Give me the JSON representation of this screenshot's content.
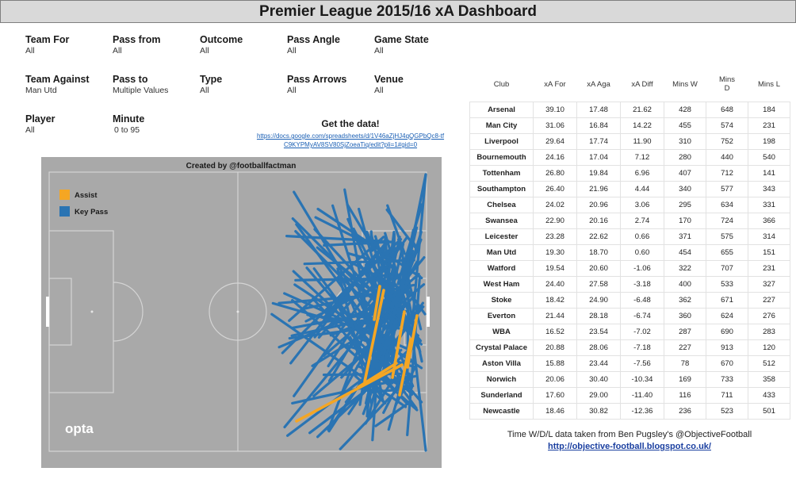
{
  "title": "Premier League 2015/16 xA Dashboard",
  "filters": [
    {
      "label": "Team For",
      "value": "All"
    },
    {
      "label": "Pass from",
      "value": "All"
    },
    {
      "label": "Outcome",
      "value": "All"
    },
    {
      "label": "Pass Angle",
      "value": "All"
    },
    {
      "label": "Game State",
      "value": "All"
    },
    {
      "label": "Team Against",
      "value": "Man Utd"
    },
    {
      "label": "Pass to",
      "value": "Multiple Values"
    },
    {
      "label": "Type",
      "value": "All"
    },
    {
      "label": "Pass Arrows",
      "value": "All"
    },
    {
      "label": "Venue",
      "value": "All"
    },
    {
      "label": "Player",
      "value": "All"
    },
    {
      "label": "Minute",
      "value": "0 to 95"
    }
  ],
  "get_data": {
    "heading": "Get the data!",
    "link": "https://docs.google.com/spreadsheets/d/1V46aZjHJ4qQGPbQc8-tfC9KYPMyAV8SV80SjZoeaTiq/edit?pli=1#gid=0"
  },
  "pitch": {
    "credit": "Created by @footballfactman",
    "legend": [
      {
        "label": "Assist",
        "color": "#f5a623"
      },
      {
        "label": "Key Pass",
        "color": "#2a74b3"
      }
    ],
    "brand": "opta",
    "key_pass_color": "#2a74b3",
    "assist_color": "#f5a623"
  },
  "table": {
    "headers": [
      "Club",
      "xA For",
      "xA Aga",
      "xA Diff",
      "Mins W",
      "Mins D",
      "Mins L"
    ],
    "rows": [
      [
        "Arsenal",
        "39.10",
        "17.48",
        "21.62",
        "428",
        "648",
        "184"
      ],
      [
        "Man City",
        "31.06",
        "16.84",
        "14.22",
        "455",
        "574",
        "231"
      ],
      [
        "Liverpool",
        "29.64",
        "17.74",
        "11.90",
        "310",
        "752",
        "198"
      ],
      [
        "Bournemouth",
        "24.16",
        "17.04",
        "7.12",
        "280",
        "440",
        "540"
      ],
      [
        "Tottenham",
        "26.80",
        "19.84",
        "6.96",
        "407",
        "712",
        "141"
      ],
      [
        "Southampton",
        "26.40",
        "21.96",
        "4.44",
        "340",
        "577",
        "343"
      ],
      [
        "Chelsea",
        "24.02",
        "20.96",
        "3.06",
        "295",
        "634",
        "331"
      ],
      [
        "Swansea",
        "22.90",
        "20.16",
        "2.74",
        "170",
        "724",
        "366"
      ],
      [
        "Leicester",
        "23.28",
        "22.62",
        "0.66",
        "371",
        "575",
        "314"
      ],
      [
        "Man Utd",
        "19.30",
        "18.70",
        "0.60",
        "454",
        "655",
        "151"
      ],
      [
        "Watford",
        "19.54",
        "20.60",
        "-1.06",
        "322",
        "707",
        "231"
      ],
      [
        "West Ham",
        "24.40",
        "27.58",
        "-3.18",
        "400",
        "533",
        "327"
      ],
      [
        "Stoke",
        "18.42",
        "24.90",
        "-6.48",
        "362",
        "671",
        "227"
      ],
      [
        "Everton",
        "21.44",
        "28.18",
        "-6.74",
        "360",
        "624",
        "276"
      ],
      [
        "WBA",
        "16.52",
        "23.54",
        "-7.02",
        "287",
        "690",
        "283"
      ],
      [
        "Crystal Palace",
        "20.88",
        "28.06",
        "-7.18",
        "227",
        "913",
        "120"
      ],
      [
        "Aston Villa",
        "15.88",
        "23.44",
        "-7.56",
        "78",
        "670",
        "512"
      ],
      [
        "Norwich",
        "20.06",
        "30.40",
        "-10.34",
        "169",
        "733",
        "358"
      ],
      [
        "Sunderland",
        "17.60",
        "29.00",
        "-11.40",
        "116",
        "711",
        "433"
      ],
      [
        "Newcastle",
        "18.46",
        "30.82",
        "-12.36",
        "236",
        "523",
        "501"
      ]
    ]
  },
  "footer": {
    "credit": "Time W/D/L data taken from Ben Pugsley's @ObjectiveFootball",
    "url": "http://objective-football.blogspot.co.uk/"
  }
}
